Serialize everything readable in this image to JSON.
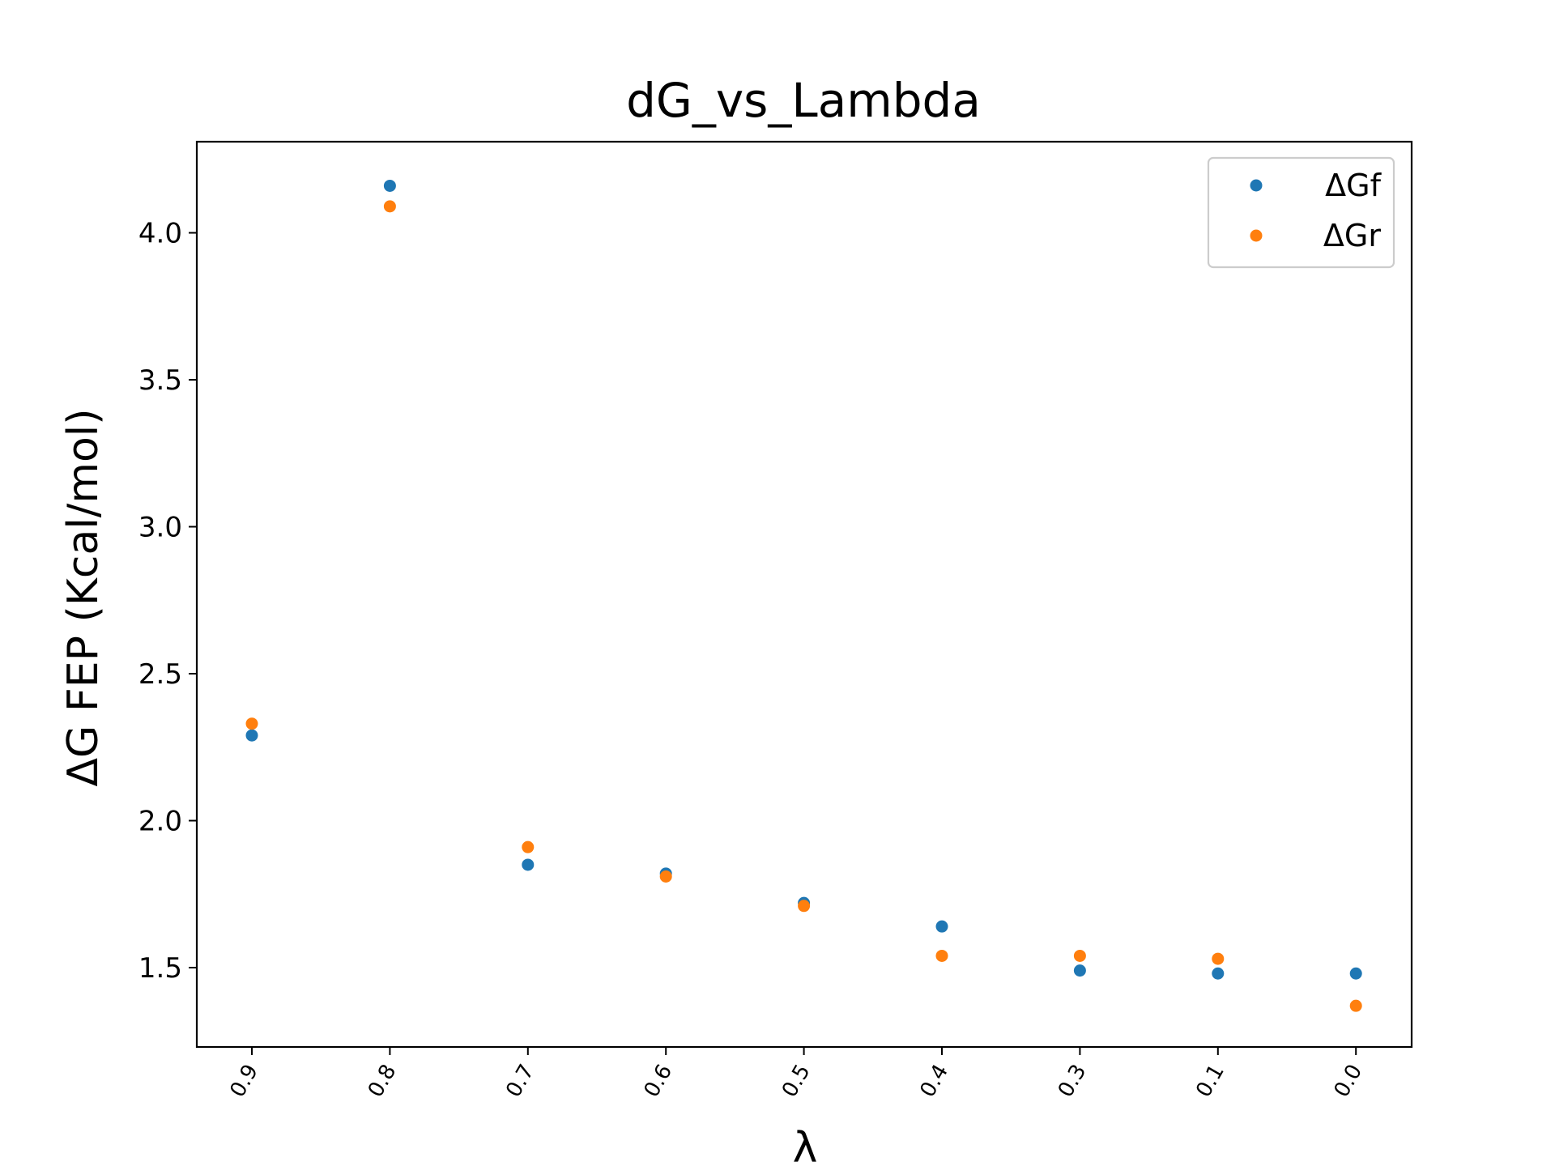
{
  "chart_data": {
    "type": "scatter",
    "title": "dG_vs_Lambda",
    "xlabel": "λ",
    "ylabel": "ΔG FEP (Kcal/mol)",
    "categories": [
      "0.9",
      "0.8",
      "0.7",
      "0.6",
      "0.5",
      "0.4",
      "0.3",
      "0.1",
      "0.0"
    ],
    "ylim": [
      1.23,
      4.31
    ],
    "yticks": [
      "1.5",
      "2.0",
      "2.5",
      "3.0",
      "3.5",
      "4.0"
    ],
    "grid": false,
    "legend_position": "upper right",
    "series": [
      {
        "name": "ΔGf",
        "color": "#1f77b4",
        "values": [
          2.29,
          4.16,
          1.85,
          1.82,
          1.72,
          1.64,
          1.49,
          1.48,
          1.48
        ]
      },
      {
        "name": "ΔGr",
        "color": "#ff7f0e",
        "values": [
          2.33,
          4.09,
          1.91,
          1.81,
          1.71,
          1.54,
          1.54,
          1.53,
          1.37
        ]
      }
    ]
  }
}
